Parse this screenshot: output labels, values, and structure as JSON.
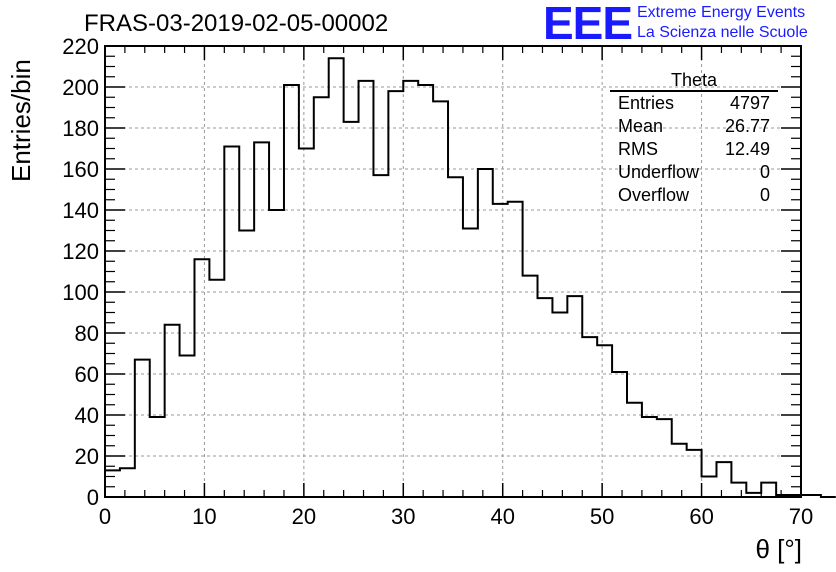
{
  "header": {
    "title": "FRAS-03-2019-02-05-00002",
    "logo_text": "EEE",
    "logo_line1": "Extreme Energy Events",
    "logo_line2": "La Scienza nelle Scuole",
    "logo_color": "#1a1aff"
  },
  "stats_box": {
    "name": "Theta",
    "rows": [
      {
        "label": "Entries",
        "value": "4797"
      },
      {
        "label": "Mean",
        "value": "26.77"
      },
      {
        "label": "RMS",
        "value": "12.49"
      },
      {
        "label": "Underflow",
        "value": "0"
      },
      {
        "label": "Overflow",
        "value": "0"
      }
    ]
  },
  "chart_data": {
    "type": "bar",
    "style": "step-histogram",
    "xlabel": "θ [°]",
    "ylabel": "Entries/bin",
    "xlim": [
      0,
      70
    ],
    "ylim": [
      0,
      220
    ],
    "grid": true,
    "xticks": [
      "0",
      "10",
      "20",
      "30",
      "40",
      "50",
      "60",
      "70"
    ],
    "yticks": [
      "0",
      "20",
      "40",
      "60",
      "80",
      "100",
      "120",
      "140",
      "160",
      "180",
      "200",
      "220"
    ],
    "bin_width": 1.5,
    "x_start": 0,
    "values": [
      13,
      14,
      67,
      39,
      84,
      69,
      116,
      106,
      171,
      130,
      173,
      140,
      201,
      170,
      195,
      214,
      183,
      203,
      157,
      198,
      203,
      201,
      193,
      156,
      131,
      160,
      143,
      144,
      108,
      97,
      90,
      98,
      78,
      74,
      61,
      46,
      39,
      38,
      26,
      23,
      10,
      17,
      7,
      2,
      7,
      1,
      1,
      1,
      0
    ]
  }
}
